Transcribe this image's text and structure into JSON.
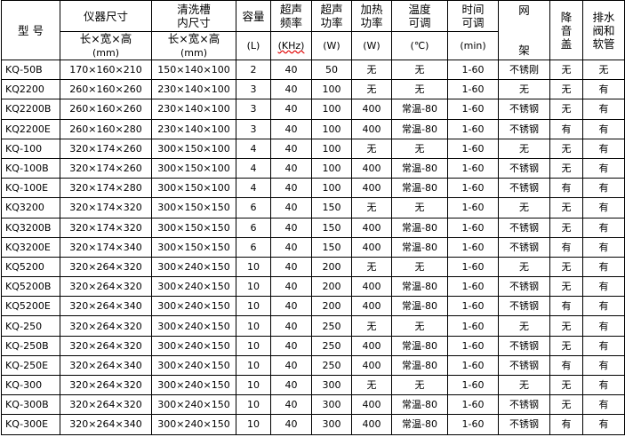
{
  "headers": {
    "model": "型 号",
    "outer_size": "仪器尺寸",
    "outer_size_unit_line1": "长×宽×高",
    "outer_size_unit_line2": "(mm)",
    "tank_size_line1": "清洗槽",
    "tank_size_line2": "内尺寸",
    "tank_size_unit_line1": "长×宽×高",
    "tank_size_unit_line2": "(mm)",
    "capacity": "容量",
    "capacity_unit": "(L)",
    "freq_line1": "超声",
    "freq_line2": "频率",
    "freq_unit": "(KHz)",
    "power_line1": "超声",
    "power_line2": "功率",
    "power_unit": "(W)",
    "heat_line1": "加热",
    "heat_line2": "功率",
    "heat_unit": "(W)",
    "temp_line1": "温度",
    "temp_line2": "可调",
    "temp_unit": "(℃)",
    "time_line1": "时间",
    "time_line2": "可调",
    "time_unit": "(min)",
    "rack_line1": "网",
    "rack_line2": "架",
    "lid_line1": "降",
    "lid_line2": "音",
    "lid_line3": "盖",
    "drain_line1": "排水",
    "drain_line2": "阀和",
    "drain_line3": "软管"
  },
  "rows": [
    [
      "KQ-50B",
      "170×160×210",
      "150×140×100",
      "2",
      "40",
      "50",
      "无",
      "无",
      "1-60",
      "不锈刚",
      "无",
      "无"
    ],
    [
      "KQ2200",
      "260×160×260",
      "230×140×100",
      "3",
      "40",
      "100",
      "无",
      "无",
      "1-60",
      "无",
      "无",
      "有"
    ],
    [
      "KQ2200B",
      "260×160×260",
      "230×140×100",
      "3",
      "40",
      "100",
      "400",
      "常温-80",
      "1-60",
      "不锈钢",
      "无",
      "有"
    ],
    [
      "KQ2200E",
      "260×160×280",
      "230×140×100",
      "3",
      "40",
      "100",
      "400",
      "常温-80",
      "1-60",
      "不锈钢",
      "有",
      "有"
    ],
    [
      "KQ-100",
      "320×174×260",
      "300×150×100",
      "4",
      "40",
      "100",
      "无",
      "无",
      "1-60",
      "无",
      "无",
      "有"
    ],
    [
      "KQ-100B",
      "320×174×260",
      "300×150×100",
      "4",
      "40",
      "100",
      "400",
      "常温-80",
      "1-60",
      "不锈钢",
      "无",
      "有"
    ],
    [
      "KQ-100E",
      "320×174×280",
      "300×150×100",
      "4",
      "40",
      "100",
      "400",
      "常温-80",
      "1-60",
      "不锈钢",
      "有",
      "有"
    ],
    [
      "KQ3200",
      "320×174×320",
      "300×150×150",
      "6",
      "40",
      "150",
      "无",
      "无",
      "1-60",
      "无",
      "无",
      "有"
    ],
    [
      "KQ3200B",
      "320×174×320",
      "300×150×150",
      "6",
      "40",
      "150",
      "400",
      "常温-80",
      "1-60",
      "不锈钢",
      "无",
      "有"
    ],
    [
      "KQ3200E",
      "320×174×340",
      "300×150×150",
      "6",
      "40",
      "150",
      "400",
      "常温-80",
      "1-60",
      "不锈钢",
      "有",
      "有"
    ],
    [
      "KQ5200",
      "320×264×320",
      "300×240×150",
      "10",
      "40",
      "200",
      "无",
      "无",
      "1-60",
      "无",
      "无",
      "有"
    ],
    [
      "KQ5200B",
      "320×264×320",
      "300×240×150",
      "10",
      "40",
      "200",
      "400",
      "常温-80",
      "1-60",
      "不锈钢",
      "无",
      "有"
    ],
    [
      "KQ5200E",
      "320×264×340",
      "300×240×150",
      "10",
      "40",
      "200",
      "400",
      "常温-80",
      "1-60",
      "不锈钢",
      "有",
      "有"
    ],
    [
      "KQ-250",
      "320×264×320",
      "300×240×150",
      "10",
      "40",
      "250",
      "无",
      "无",
      "1-60",
      "无",
      "无",
      "有"
    ],
    [
      "KQ-250B",
      "320×264×320",
      "300×240×150",
      "10",
      "40",
      "250",
      "400",
      "常温-80",
      "1-60",
      "不锈钢",
      "无",
      "有"
    ],
    [
      "KQ-250E",
      "320×264×340",
      "300×240×150",
      "10",
      "40",
      "250",
      "400",
      "常温-80",
      "1-60",
      "不锈钢",
      "有",
      "有"
    ],
    [
      "KQ-300",
      "320×264×320",
      "300×240×150",
      "10",
      "40",
      "300",
      "无",
      "无",
      "1-60",
      "无",
      "无",
      "有"
    ],
    [
      "KQ-300B",
      "320×264×320",
      "300×240×150",
      "10",
      "40",
      "300",
      "400",
      "常温-80",
      "1-60",
      "不锈钢",
      "无",
      "有"
    ],
    [
      "KQ-300E",
      "320×264×340",
      "300×240×150",
      "10",
      "40",
      "300",
      "400",
      "常温-80",
      "1-60",
      "不锈钢",
      "有",
      "有"
    ]
  ]
}
